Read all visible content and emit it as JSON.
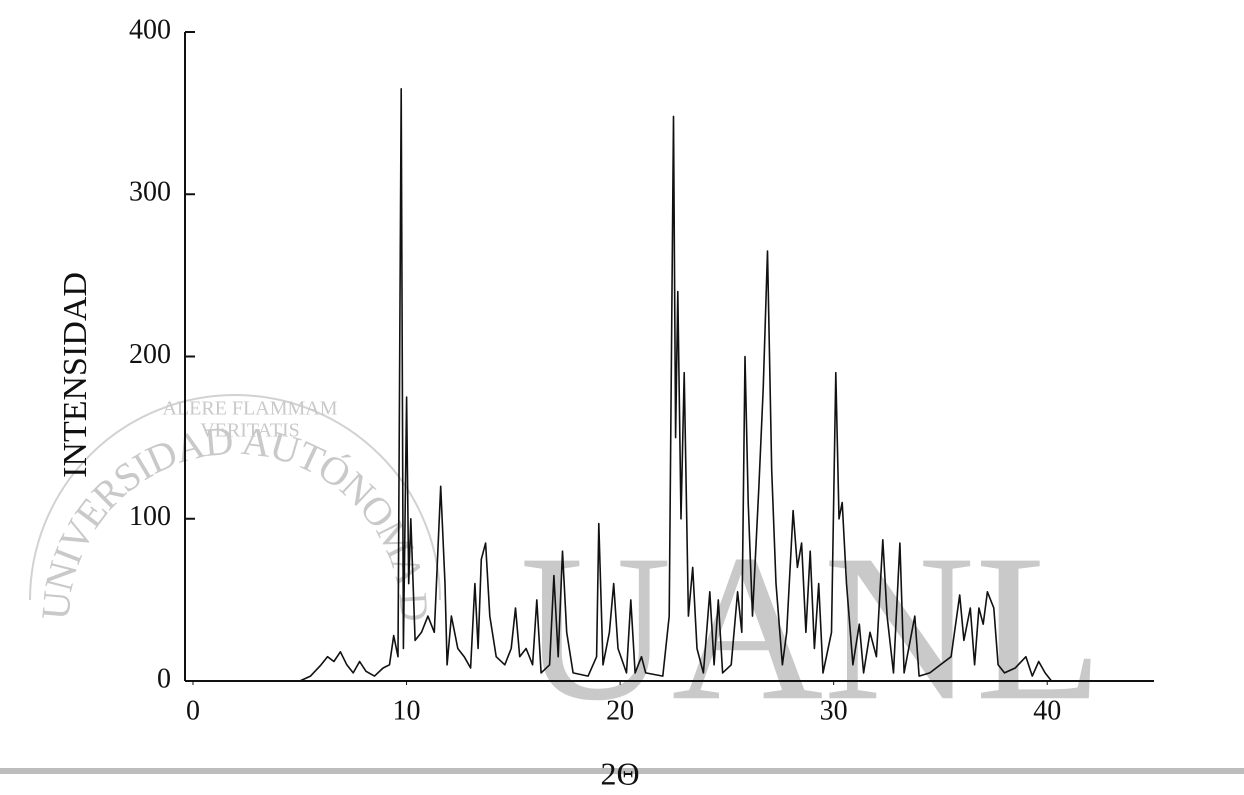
{
  "chart_data": {
    "type": "line",
    "x_label": "2Θ",
    "y_label": "INTENSIDAD",
    "watermark": [
      "UANL",
      "UNIVERSIDAD AUTÓNOMA DE NUEVO LEÓN",
      "ALERE FLAMMAM",
      "VERITATIS"
    ],
    "xlim": [
      0,
      45
    ],
    "ylim": [
      0,
      400
    ],
    "xticks": [
      0,
      10,
      20,
      30,
      40
    ],
    "yticks": [
      0,
      100,
      200,
      300,
      400
    ],
    "grid": false,
    "series": [
      {
        "color": "#111111",
        "x": [
          5,
          5.5,
          6,
          6.3,
          6.6,
          6.9,
          7.2,
          7.5,
          7.8,
          8.1,
          8.5,
          8.9,
          9.2,
          9.4,
          9.6,
          9.75,
          9.85,
          10,
          10.1,
          10.2,
          10.4,
          10.7,
          11,
          11.3,
          11.6,
          11.8,
          11.9,
          12.1,
          12.4,
          12.7,
          13,
          13.2,
          13.35,
          13.5,
          13.7,
          13.9,
          14.2,
          14.6,
          14.9,
          15.1,
          15.3,
          15.6,
          15.9,
          16.1,
          16.3,
          16.7,
          16.9,
          17.1,
          17.3,
          17.5,
          17.8,
          18.5,
          18.9,
          19,
          19.2,
          19.5,
          19.7,
          19.9,
          20.3,
          20.5,
          20.7,
          21,
          21.2,
          22,
          22.3,
          22.5,
          22.6,
          22.7,
          22.85,
          23,
          23.2,
          23.4,
          23.6,
          23.9,
          24.2,
          24.4,
          24.6,
          24.8,
          25.2,
          25.5,
          25.7,
          25.85,
          26,
          26.2,
          26.5,
          26.7,
          26.9,
          27.1,
          27.3,
          27.6,
          27.8,
          28,
          28.1,
          28.3,
          28.5,
          28.7,
          28.9,
          29.1,
          29.3,
          29.5,
          29.9,
          30.1,
          30.25,
          30.4,
          30.6,
          30.9,
          31.2,
          31.4,
          31.7,
          32,
          32.3,
          32.5,
          32.8,
          33.1,
          33.3,
          33.8,
          34,
          34.5,
          35,
          35.5,
          35.9,
          36.1,
          36.4,
          36.6,
          36.8,
          37,
          37.2,
          37.5,
          37.7,
          38,
          38.5,
          39,
          39.3,
          39.6,
          39.9,
          40.2
        ],
        "values": [
          0,
          3,
          10,
          15,
          12,
          18,
          10,
          5,
          12,
          6,
          3,
          8,
          10,
          28,
          15,
          365,
          20,
          175,
          60,
          100,
          25,
          30,
          40,
          30,
          120,
          60,
          10,
          40,
          20,
          15,
          8,
          60,
          20,
          75,
          85,
          40,
          15,
          10,
          20,
          45,
          15,
          20,
          10,
          50,
          5,
          10,
          65,
          15,
          80,
          30,
          5,
          3,
          15,
          97,
          10,
          30,
          60,
          20,
          5,
          50,
          5,
          15,
          5,
          3,
          40,
          348,
          150,
          240,
          100,
          190,
          40,
          70,
          20,
          5,
          55,
          10,
          50,
          5,
          10,
          55,
          30,
          200,
          110,
          40,
          120,
          180,
          265,
          130,
          60,
          10,
          30,
          80,
          105,
          70,
          85,
          30,
          80,
          20,
          60,
          5,
          30,
          190,
          100,
          110,
          60,
          10,
          35,
          5,
          30,
          15,
          87,
          40,
          5,
          85,
          5,
          40,
          3,
          5,
          10,
          15,
          53,
          25,
          45,
          10,
          45,
          35,
          55,
          45,
          10,
          5,
          8,
          15,
          3,
          12,
          5,
          0
        ]
      }
    ]
  }
}
